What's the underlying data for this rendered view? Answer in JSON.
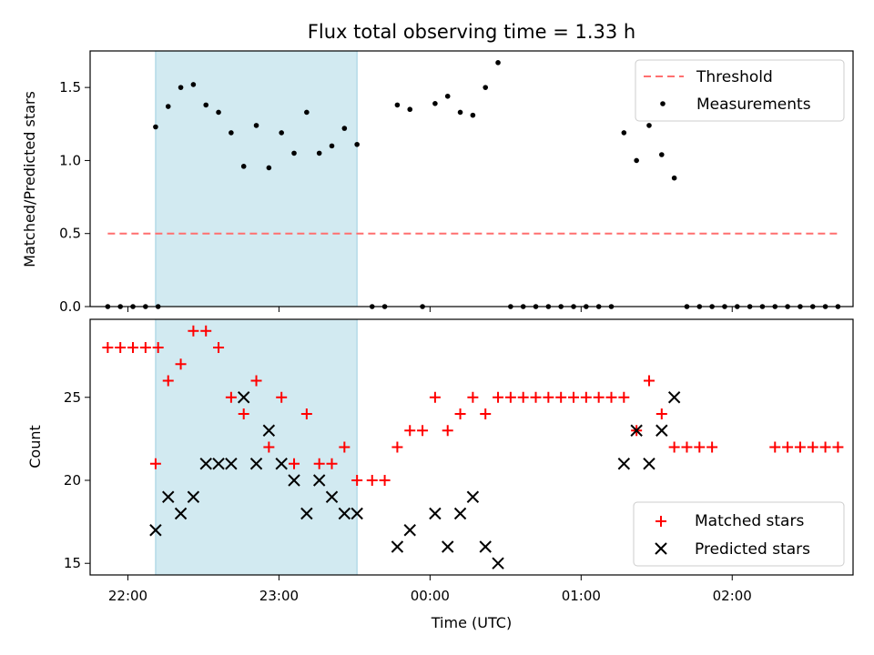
{
  "chart_data": [
    {
      "type": "scatter",
      "title": "Flux total observing time = 1.33 h",
      "xlabel": "",
      "ylabel": "Matched/Predicted stars",
      "xlim": [
        "21:45",
        "02:48"
      ],
      "ylim": [
        0.0,
        1.75
      ],
      "yticks": [
        0.0,
        0.5,
        1.0,
        1.5
      ],
      "ytick_labels": [
        "0.0",
        "0.5",
        "1.0",
        "1.5"
      ],
      "x_tick_labels_shown": false,
      "highlight_span": {
        "from": "22:11",
        "to": "23:31",
        "color": "#add8e6"
      },
      "threshold": {
        "name": "Threshold",
        "value": 0.5,
        "from": "21:52",
        "to": "02:42",
        "color": "#ff6f6f",
        "style": "dashed"
      },
      "legend": {
        "position": "upper right",
        "entries": [
          "Threshold",
          "Measurements"
        ]
      },
      "series": [
        {
          "name": "Measurements",
          "color": "#000000",
          "x": [
            "21:52",
            "21:57",
            "22:02",
            "22:07",
            "22:12",
            "22:11",
            "22:16",
            "22:21",
            "22:26",
            "22:31",
            "22:36",
            "22:41",
            "22:46",
            "22:51",
            "22:56",
            "23:01",
            "23:06",
            "23:11",
            "23:16",
            "23:21",
            "23:26",
            "23:31",
            "23:37",
            "23:42",
            "23:47",
            "23:52",
            "23:57",
            "00:02",
            "00:07",
            "00:12",
            "00:17",
            "00:22",
            "00:27",
            "00:32",
            "00:37",
            "00:42",
            "00:47",
            "00:52",
            "00:57",
            "01:02",
            "01:07",
            "01:12",
            "01:17",
            "01:22",
            "01:27",
            "01:32",
            "01:37",
            "01:42",
            "01:47",
            "01:52",
            "01:57",
            "02:02",
            "02:07",
            "02:12",
            "02:17",
            "02:22",
            "02:27",
            "02:32",
            "02:37",
            "02:42"
          ],
          "y": [
            0,
            0,
            0,
            0,
            0,
            1.23,
            1.37,
            1.5,
            1.52,
            1.38,
            1.33,
            1.19,
            0.96,
            1.24,
            0.95,
            1.19,
            1.05,
            1.33,
            1.05,
            1.1,
            1.22,
            1.11,
            0,
            0,
            1.38,
            1.35,
            0,
            1.39,
            1.44,
            1.33,
            1.31,
            1.5,
            1.67,
            0,
            0,
            0,
            0,
            0,
            0,
            0,
            0,
            0,
            1.19,
            1.0,
            1.24,
            1.04,
            0.88,
            0,
            0,
            0,
            0,
            0,
            0,
            0,
            0,
            0,
            0,
            0,
            0,
            0
          ]
        }
      ]
    },
    {
      "type": "scatter",
      "title": "",
      "xlabel": "Time (UTC)",
      "ylabel": "Count",
      "xlim": [
        "21:45",
        "02:48"
      ],
      "ylim": [
        14.3,
        29.7
      ],
      "xticks": [
        "22:00",
        "23:00",
        "00:00",
        "01:00",
        "02:00"
      ],
      "yticks": [
        15,
        20,
        25
      ],
      "ytick_labels": [
        "15",
        "20",
        "25"
      ],
      "highlight_span": {
        "from": "22:11",
        "to": "23:31",
        "color": "#add8e6"
      },
      "legend": {
        "position": "lower right",
        "entries": [
          "Matched stars",
          "Predicted stars"
        ]
      },
      "series": [
        {
          "name": "Matched stars",
          "marker": "+",
          "color": "#ff0000",
          "x": [
            "21:52",
            "21:57",
            "22:02",
            "22:07",
            "22:12",
            "22:11",
            "22:16",
            "22:21",
            "22:26",
            "22:31",
            "22:36",
            "22:41",
            "22:46",
            "22:51",
            "22:56",
            "23:01",
            "23:06",
            "23:11",
            "23:16",
            "23:21",
            "23:26",
            "23:31",
            "23:37",
            "23:42",
            "23:47",
            "23:52",
            "23:57",
            "00:02",
            "00:07",
            "00:12",
            "00:17",
            "00:22",
            "00:27",
            "00:32",
            "00:37",
            "00:42",
            "00:47",
            "00:52",
            "00:57",
            "01:02",
            "01:07",
            "01:12",
            "01:17",
            "01:22",
            "01:27",
            "01:32",
            "01:37",
            "01:42",
            "01:47",
            "01:52",
            "02:17",
            "02:22",
            "02:27",
            "02:32",
            "02:37",
            "02:42"
          ],
          "y": [
            28,
            28,
            28,
            28,
            28,
            21,
            26,
            27,
            29,
            29,
            28,
            25,
            24,
            26,
            22,
            25,
            21,
            24,
            21,
            21,
            22,
            20,
            20,
            20,
            22,
            23,
            23,
            25,
            23,
            24,
            25,
            24,
            25,
            25,
            25,
            25,
            25,
            25,
            25,
            25,
            25,
            25,
            25,
            23,
            26,
            24,
            22,
            22,
            22,
            22,
            22,
            22,
            22,
            22,
            22,
            22
          ]
        },
        {
          "name": "Predicted stars",
          "marker": "x",
          "color": "#000000",
          "x": [
            "22:11",
            "22:16",
            "22:21",
            "22:26",
            "22:31",
            "22:36",
            "22:41",
            "22:46",
            "22:51",
            "22:56",
            "23:01",
            "23:06",
            "23:11",
            "23:16",
            "23:21",
            "23:26",
            "23:31",
            "23:47",
            "23:52",
            "00:02",
            "00:07",
            "00:12",
            "00:17",
            "00:22",
            "00:27",
            "01:17",
            "01:22",
            "01:27",
            "01:32",
            "01:37"
          ],
          "y": [
            17,
            19,
            18,
            19,
            21,
            21,
            21,
            25,
            21,
            23,
            21,
            20,
            18,
            20,
            19,
            18,
            18,
            16,
            17,
            18,
            16,
            18,
            19,
            16,
            15,
            21,
            23,
            21,
            23,
            25
          ]
        }
      ]
    }
  ]
}
